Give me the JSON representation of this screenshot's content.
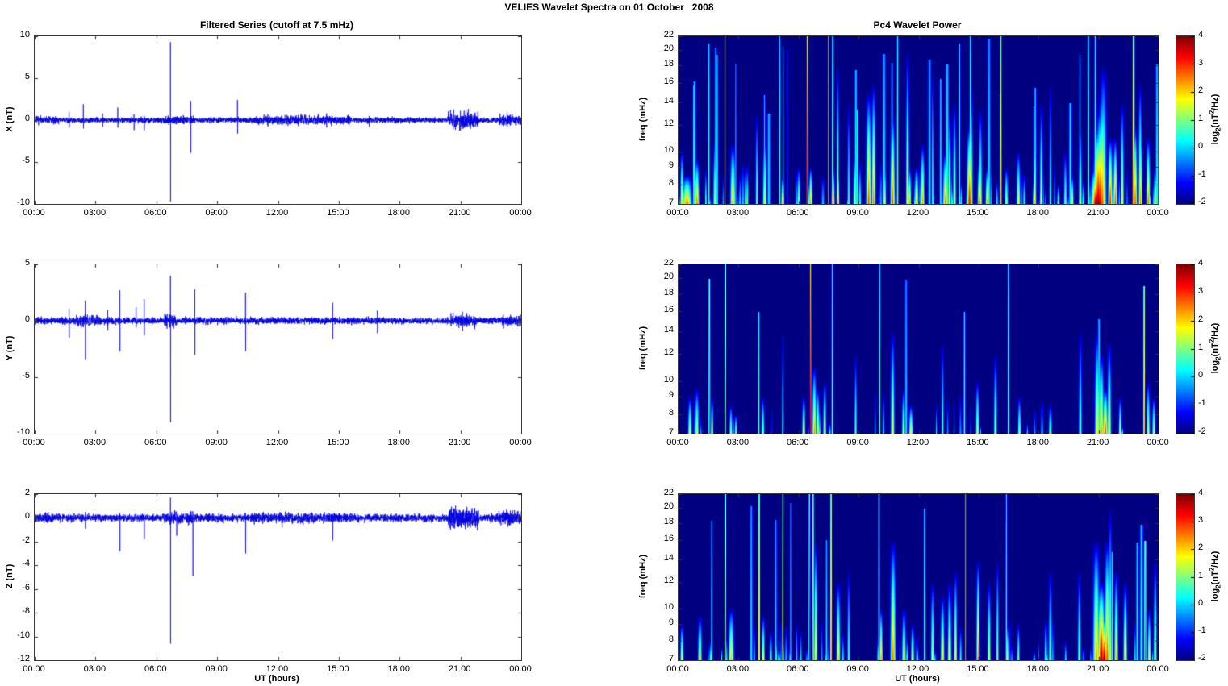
{
  "figure_title": "VELIES Wavelet Spectra on 01 October   2008",
  "xlabel": "UT (hours)",
  "xtick_labels": [
    "00:00",
    "03:00",
    "06:00",
    "09:00",
    "12:00",
    "15:00",
    "18:00",
    "21:00",
    "00:00"
  ],
  "line_color": "#0000dd",
  "colorbar": {
    "colormap": "jet",
    "clim": [
      -2,
      4
    ],
    "ticks": [
      4,
      3,
      2,
      1,
      0,
      -1,
      -2
    ],
    "label_parts": {
      "pre": "log",
      "sub": "2",
      "mid": "(nT",
      "sup": "2",
      "post": "/Hz)"
    }
  },
  "chart_data": [
    {
      "id": "x-series",
      "type": "line",
      "title": "Filtered Series (cutoff at 7.5 mHz)",
      "ylabel": "X (nT)",
      "ylim": [
        -10,
        10
      ],
      "yticks": [
        10,
        5,
        0,
        -5,
        -10
      ],
      "xlim_hours": [
        0,
        24
      ],
      "grid": false,
      "noise_amp": 0.18,
      "noise_seed": 7,
      "bursts": [
        [
          0,
          1.2,
          0.25
        ],
        [
          6.3,
          7.9,
          0.28
        ],
        [
          10.8,
          15.6,
          0.3
        ],
        [
          20.4,
          21.9,
          0.55
        ],
        [
          22.9,
          24,
          0.35
        ]
      ],
      "spikes": [
        [
          1.7,
          1.0,
          0.9
        ],
        [
          2.4,
          1.9,
          1.0
        ],
        [
          3.35,
          0.8,
          0.8
        ],
        [
          4.1,
          1.5,
          0.9
        ],
        [
          4.9,
          0.7,
          1.2
        ],
        [
          5.4,
          0.5,
          1.2
        ],
        [
          6.7,
          9.3,
          9.7
        ],
        [
          7.7,
          2.3,
          3.9
        ],
        [
          10.0,
          2.4,
          1.6
        ],
        [
          11.5,
          0.7,
          0.8
        ],
        [
          13.0,
          0.6,
          0.7
        ],
        [
          14.4,
          0.8,
          0.9
        ],
        [
          16.5,
          0.5,
          0.8
        ],
        [
          21.0,
          1.1,
          1.2
        ],
        [
          23.3,
          0.9,
          0.8
        ]
      ]
    },
    {
      "id": "y-series",
      "type": "line",
      "title": "",
      "ylabel": "Y (nT)",
      "ylim": [
        -10,
        5
      ],
      "yticks": [
        5,
        0,
        -5,
        -10
      ],
      "xlim_hours": [
        0,
        24
      ],
      "grid": false,
      "noise_amp": 0.16,
      "noise_seed": 13,
      "bursts": [
        [
          2.0,
          3.2,
          0.28
        ],
        [
          6.4,
          7.0,
          0.3
        ],
        [
          20.5,
          21.8,
          0.3
        ],
        [
          23,
          24,
          0.25
        ]
      ],
      "spikes": [
        [
          1.7,
          1.1,
          1.5
        ],
        [
          2.5,
          1.8,
          3.4
        ],
        [
          3.6,
          1.0,
          0.8
        ],
        [
          4.2,
          2.7,
          2.7
        ],
        [
          5.0,
          1.2,
          0.6
        ],
        [
          5.4,
          1.9,
          1.3
        ],
        [
          6.7,
          4.0,
          9.0
        ],
        [
          7.9,
          2.8,
          3.0
        ],
        [
          10.4,
          2.5,
          2.7
        ],
        [
          14.7,
          1.6,
          1.6
        ],
        [
          16.9,
          0.9,
          1.1
        ],
        [
          21.1,
          0.8,
          0.9
        ]
      ]
    },
    {
      "id": "z-series",
      "type": "line",
      "title": "",
      "ylabel": "Z (nT)",
      "ylim": [
        -12,
        2
      ],
      "yticks": [
        2,
        0,
        -2,
        -4,
        -6,
        -8,
        -10,
        -12
      ],
      "xlim_hours": [
        0,
        24
      ],
      "grid": false,
      "noise_amp": 0.18,
      "noise_seed": 29,
      "bursts": [
        [
          0,
          1,
          0.22
        ],
        [
          6.3,
          7.9,
          0.28
        ],
        [
          10.8,
          15.6,
          0.24
        ],
        [
          20.4,
          21.9,
          0.5
        ],
        [
          22.9,
          24,
          0.32
        ]
      ],
      "spikes": [
        [
          2.5,
          0.5,
          0.9
        ],
        [
          4.2,
          0.4,
          2.8
        ],
        [
          5.4,
          0.3,
          1.8
        ],
        [
          6.7,
          1.7,
          10.6
        ],
        [
          7.0,
          0.3,
          1.5
        ],
        [
          7.8,
          0.5,
          4.9
        ],
        [
          10.4,
          0.4,
          3.0
        ],
        [
          12.2,
          0.3,
          0.8
        ],
        [
          14.7,
          0.3,
          1.9
        ]
      ]
    },
    {
      "id": "x-wavelet",
      "type": "heatmap",
      "title": "Pc4 Wavelet Power",
      "ylabel": "freq (mHz)",
      "yscale": "log",
      "ylim": [
        7,
        22
      ],
      "yticks": [
        22,
        20,
        18,
        16,
        14,
        12,
        10,
        9,
        8,
        7
      ],
      "xlim_hours": [
        0,
        24
      ],
      "clim": [
        -2,
        4
      ],
      "texture": {
        "seed": 11,
        "count": 80,
        "vmax": 1.6
      },
      "events": [
        [
          0.15,
          10,
          2.2,
          0.05
        ],
        [
          0.4,
          8.5,
          2.6,
          0.15
        ],
        [
          0.9,
          9.5,
          2.7,
          0.07
        ],
        [
          1.5,
          21,
          0.9,
          0.03,
          "line"
        ],
        [
          1.8,
          11,
          1.6,
          0.05
        ],
        [
          2.29,
          0,
          0,
          0,
          "gray"
        ],
        [
          2.7,
          10.5,
          2.4,
          0.08
        ],
        [
          3.35,
          9,
          1.3,
          0.05
        ],
        [
          3.9,
          13,
          1.2,
          0.04
        ],
        [
          4.3,
          11,
          2.0,
          0.06
        ],
        [
          5.05,
          22,
          0.8,
          0.03,
          "line"
        ],
        [
          5.2,
          8.5,
          2.4,
          0.05
        ],
        [
          6.0,
          9,
          1.6,
          0.05
        ],
        [
          6.43,
          22,
          3.6,
          0.025,
          "line"
        ],
        [
          6.6,
          9,
          2.6,
          0.05
        ],
        [
          7.46,
          0,
          0,
          0,
          "gray"
        ],
        [
          7.7,
          22,
          1.5,
          0.03,
          "line"
        ],
        [
          7.72,
          9,
          2.6,
          0.05
        ],
        [
          7.95,
          18,
          1.6,
          0.04
        ],
        [
          7.97,
          9,
          2.5,
          0.04
        ],
        [
          8.5,
          14,
          0.9,
          0.04
        ],
        [
          8.8,
          10,
          1.5,
          0.05
        ],
        [
          9.5,
          15,
          2.9,
          0.08
        ],
        [
          9.75,
          16,
          2.7,
          0.06
        ],
        [
          10.3,
          9.5,
          1.7,
          0.05
        ],
        [
          10.7,
          13,
          2.9,
          0.07
        ],
        [
          10.95,
          22,
          1.1,
          0.03,
          "line"
        ],
        [
          11.45,
          20,
          1.9,
          0.05
        ],
        [
          11.55,
          9,
          2.4,
          0.05
        ],
        [
          11.9,
          9,
          2.5,
          0.06
        ],
        [
          12.2,
          10.5,
          2.5,
          0.06
        ],
        [
          12.7,
          18,
          1.1,
          0.03
        ],
        [
          13.35,
          10,
          2.7,
          0.08
        ],
        [
          13.55,
          13,
          1.7,
          0.05
        ],
        [
          13.8,
          14,
          1.6,
          0.05
        ],
        [
          14.05,
          21,
          1.0,
          0.03,
          "line"
        ],
        [
          14.55,
          12,
          3.4,
          0.08
        ],
        [
          14.62,
          16,
          2.1,
          0.06
        ],
        [
          14.6,
          22,
          1.3,
          0.03,
          "line"
        ],
        [
          15.05,
          9.5,
          2.7,
          0.06
        ],
        [
          15.1,
          13.5,
          1.6,
          0.05
        ],
        [
          15.45,
          9,
          2.5,
          0.06
        ],
        [
          16.12,
          22,
          2.3,
          0.028,
          "line"
        ],
        [
          16.4,
          9,
          1.7,
          0.05
        ],
        [
          17.0,
          10,
          1.9,
          0.06
        ],
        [
          17.8,
          8.5,
          2.6,
          0.05
        ],
        [
          17.82,
          12,
          1.7,
          0.05
        ],
        [
          18.15,
          14,
          1.5,
          0.05
        ],
        [
          18.6,
          16,
          1.1,
          0.035
        ],
        [
          19.0,
          8,
          1.3,
          0.04
        ],
        [
          19.35,
          10,
          1.1,
          0.05
        ],
        [
          19.7,
          8.5,
          2.2,
          0.04
        ],
        [
          20.1,
          12,
          1.6,
          0.05
        ],
        [
          20.5,
          22,
          1.4,
          0.03,
          "line"
        ],
        [
          20.85,
          22,
          1.5,
          0.03,
          "line"
        ],
        [
          20.9,
          9,
          4.0,
          0.16
        ],
        [
          21.0,
          12,
          3.9,
          0.14
        ],
        [
          21.1,
          13.5,
          3.4,
          0.12
        ],
        [
          21.2,
          15.5,
          2.8,
          0.11
        ],
        [
          21.25,
          18,
          1.9,
          0.1
        ],
        [
          21.6,
          11,
          3.2,
          0.07
        ],
        [
          21.85,
          11,
          3.0,
          0.06
        ],
        [
          22.2,
          14,
          1.9,
          0.05
        ],
        [
          22.77,
          22,
          3.2,
          0.035,
          "line"
        ],
        [
          22.85,
          12,
          2.9,
          0.06
        ],
        [
          23.1,
          16,
          2.1,
          0.05
        ],
        [
          23.12,
          12,
          2.7,
          0.05
        ],
        [
          23.5,
          11,
          2.8,
          0.06
        ],
        [
          23.85,
          9,
          1.9,
          0.05
        ]
      ]
    },
    {
      "id": "y-wavelet",
      "type": "heatmap",
      "title": "",
      "ylabel": "freq (mHz)",
      "yscale": "log",
      "ylim": [
        7,
        22
      ],
      "yticks": [
        22,
        20,
        18,
        16,
        14,
        12,
        10,
        9,
        8,
        7
      ],
      "xlim_hours": [
        0,
        24
      ],
      "clim": [
        -2,
        4
      ],
      "texture": {
        "seed": 17,
        "count": 28,
        "vmax": 1.2
      },
      "events": [
        [
          0.55,
          9,
          1.7,
          0.06
        ],
        [
          0.9,
          9.5,
          1.8,
          0.06
        ],
        [
          1.53,
          20,
          3.0,
          0.028,
          "line"
        ],
        [
          1.66,
          9,
          1.7,
          0.04
        ],
        [
          2.33,
          22,
          3.7,
          0.022,
          "line"
        ],
        [
          2.6,
          8.5,
          1.8,
          0.04
        ],
        [
          2.85,
          8,
          1.4,
          0.04
        ],
        [
          4.0,
          16,
          1.0,
          0.03,
          "line"
        ],
        [
          4.2,
          9,
          1.4,
          0.05
        ],
        [
          5.2,
          14,
          0.7,
          0.03
        ],
        [
          6.25,
          9,
          2.0,
          0.05
        ],
        [
          6.59,
          22,
          3.6,
          0.022,
          "line"
        ],
        [
          6.78,
          11,
          2.6,
          0.06
        ],
        [
          6.95,
          9.5,
          2.2,
          0.05
        ],
        [
          7.3,
          10,
          1.8,
          0.05
        ],
        [
          7.68,
          22,
          1.6,
          0.028,
          "line"
        ],
        [
          8.85,
          12,
          0.9,
          0.04
        ],
        [
          10.05,
          22,
          1.1,
          0.025,
          "line"
        ],
        [
          10.7,
          14,
          1.8,
          0.06
        ],
        [
          11.25,
          9.5,
          1.7,
          0.05
        ],
        [
          11.62,
          8.5,
          2.1,
          0.06
        ],
        [
          13.2,
          13,
          0.9,
          0.04
        ],
        [
          14.3,
          16,
          1.0,
          0.03,
          "line"
        ],
        [
          14.95,
          10,
          1.8,
          0.05
        ],
        [
          15.85,
          12,
          1.4,
          0.05
        ],
        [
          16.5,
          22,
          1.5,
          0.025,
          "line"
        ],
        [
          17.05,
          9,
          1.5,
          0.05
        ],
        [
          18.6,
          8.5,
          1.4,
          0.05
        ],
        [
          20.1,
          14,
          1.0,
          0.05
        ],
        [
          20.95,
          14,
          2.0,
          0.08
        ],
        [
          21.15,
          12,
          2.5,
          0.08
        ],
        [
          21.35,
          9.5,
          3.1,
          0.08
        ],
        [
          21.55,
          13,
          1.9,
          0.06
        ],
        [
          22.1,
          9,
          1.6,
          0.05
        ],
        [
          23.3,
          19,
          2.7,
          0.028,
          "line"
        ],
        [
          23.5,
          10,
          1.8,
          0.05
        ],
        [
          23.78,
          9,
          1.7,
          0.05
        ]
      ]
    },
    {
      "id": "z-wavelet",
      "type": "heatmap",
      "title": "",
      "ylabel": "freq (mHz)",
      "yscale": "log",
      "ylim": [
        7,
        22
      ],
      "yticks": [
        22,
        20,
        18,
        16,
        14,
        12,
        10,
        9,
        8,
        7
      ],
      "xlim_hours": [
        0,
        24
      ],
      "clim": [
        -2,
        4
      ],
      "texture": {
        "seed": 23,
        "count": 55,
        "vmax": 1.5
      },
      "events": [
        [
          0.15,
          9,
          1.9,
          0.05
        ],
        [
          1.05,
          9.5,
          2.0,
          0.06
        ],
        [
          1.6,
          8,
          1.4,
          0.04
        ],
        [
          2.33,
          22,
          3.5,
          0.025,
          "line"
        ],
        [
          2.62,
          10,
          2.3,
          0.08
        ],
        [
          4.02,
          22,
          3.7,
          0.022,
          "line"
        ],
        [
          4.22,
          9.5,
          2.1,
          0.05
        ],
        [
          4.6,
          8.5,
          1.6,
          0.04
        ],
        [
          5.2,
          22,
          2.6,
          0.02,
          "line"
        ],
        [
          6.54,
          22,
          3.8,
          0.025,
          "line"
        ],
        [
          6.72,
          22,
          3.4,
          0.022,
          "line"
        ],
        [
          6.85,
          16,
          2.3,
          0.05
        ],
        [
          7.62,
          22,
          3.3,
          0.025,
          "line"
        ],
        [
          7.98,
          12,
          2.3,
          0.06
        ],
        [
          8.5,
          13,
          1.1,
          0.04
        ],
        [
          10.02,
          22,
          3.4,
          0.025,
          "line"
        ],
        [
          10.12,
          10,
          2.6,
          0.05
        ],
        [
          10.72,
          16,
          2.7,
          0.08
        ],
        [
          11.27,
          10,
          2.1,
          0.06
        ],
        [
          11.7,
          9,
          1.9,
          0.05
        ],
        [
          12.3,
          20,
          1.0,
          0.03,
          "line"
        ],
        [
          12.7,
          12,
          1.8,
          0.05
        ],
        [
          13.2,
          11,
          2.1,
          0.06
        ],
        [
          13.55,
          12,
          1.9,
          0.06
        ],
        [
          13.85,
          13,
          2.0,
          0.05
        ],
        [
          14.32,
          0,
          0,
          0,
          "gray"
        ],
        [
          14.98,
          14,
          2.9,
          0.05
        ],
        [
          15.53,
          12,
          1.9,
          0.05
        ],
        [
          15.95,
          14,
          1.3,
          0.04
        ],
        [
          16.4,
          22,
          1.0,
          0.028,
          "line"
        ],
        [
          16.45,
          9,
          1.6,
          0.04
        ],
        [
          17.0,
          9,
          1.3,
          0.04
        ],
        [
          18.6,
          13,
          1.3,
          0.05
        ],
        [
          20.05,
          13,
          1.2,
          0.05
        ],
        [
          20.9,
          16,
          2.5,
          0.1
        ],
        [
          21.15,
          12,
          3.9,
          0.11
        ],
        [
          21.3,
          9.5,
          4.0,
          0.1
        ],
        [
          21.45,
          16,
          2.9,
          0.08
        ],
        [
          21.6,
          20,
          1.7,
          0.05
        ],
        [
          21.9,
          13,
          2.3,
          0.06
        ],
        [
          22.35,
          12,
          2.1,
          0.06
        ],
        [
          23.35,
          16,
          3.0,
          0.032,
          "line"
        ],
        [
          23.55,
          10,
          1.9,
          0.05
        ],
        [
          23.85,
          14,
          1.7,
          0.05
        ]
      ]
    }
  ]
}
